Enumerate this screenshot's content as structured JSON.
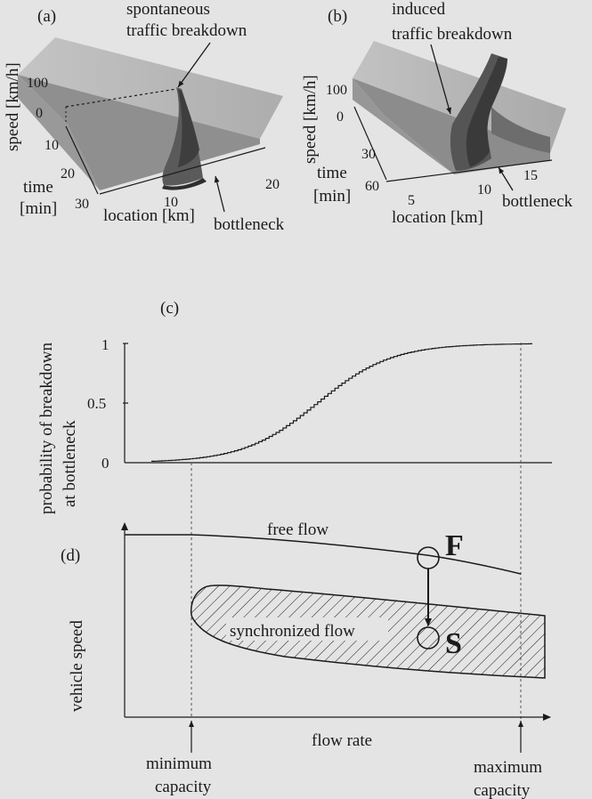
{
  "panel_a": {
    "label": "(a)",
    "annotation": [
      "spontaneous",
      "traffic breakdown"
    ],
    "speed_axis_label": "speed [km/h]",
    "speed_ticks": [
      "100",
      "0"
    ],
    "time_axis_label": [
      "time",
      "[min]"
    ],
    "time_ticks": [
      "10",
      "20",
      "30"
    ],
    "location_axis_label": "location [km]",
    "location_ticks": [
      "10",
      "20"
    ],
    "bottleneck_label": "bottleneck"
  },
  "panel_b": {
    "label": "(b)",
    "annotation": [
      "induced",
      "traffic breakdown"
    ],
    "speed_axis_label": "speed [km/h]",
    "speed_ticks": [
      "100",
      "0"
    ],
    "time_axis_label": [
      "time",
      "[min]"
    ],
    "time_ticks": [
      "30",
      "60"
    ],
    "location_axis_label": "location [km]",
    "location_ticks": [
      "5",
      "10",
      "15"
    ],
    "bottleneck_label": "bottleneck"
  },
  "panel_c": {
    "label": "(c)",
    "ylabel": [
      "probability of breakdown",
      "at bottleneck"
    ],
    "yticks": [
      "1",
      "0.5",
      "0"
    ],
    "curve": "logistic step curve, 0 to 1"
  },
  "panel_d": {
    "label": "(d)",
    "free_flow_label": "free flow",
    "synchronized_flow_label": "synchronized flow",
    "state_F": "F",
    "state_S": "S",
    "ylabel": "vehicle speed",
    "xlabel": "flow rate",
    "minimum_capacity": [
      "minimum",
      "capacity"
    ],
    "maximum_capacity": [
      "maximum",
      "capacity"
    ]
  },
  "colors": {
    "background": "#e4e4e4",
    "ink": "#1a1a1a",
    "surface": "#b8b8b8",
    "surface_dark": "#4a4a4a"
  }
}
